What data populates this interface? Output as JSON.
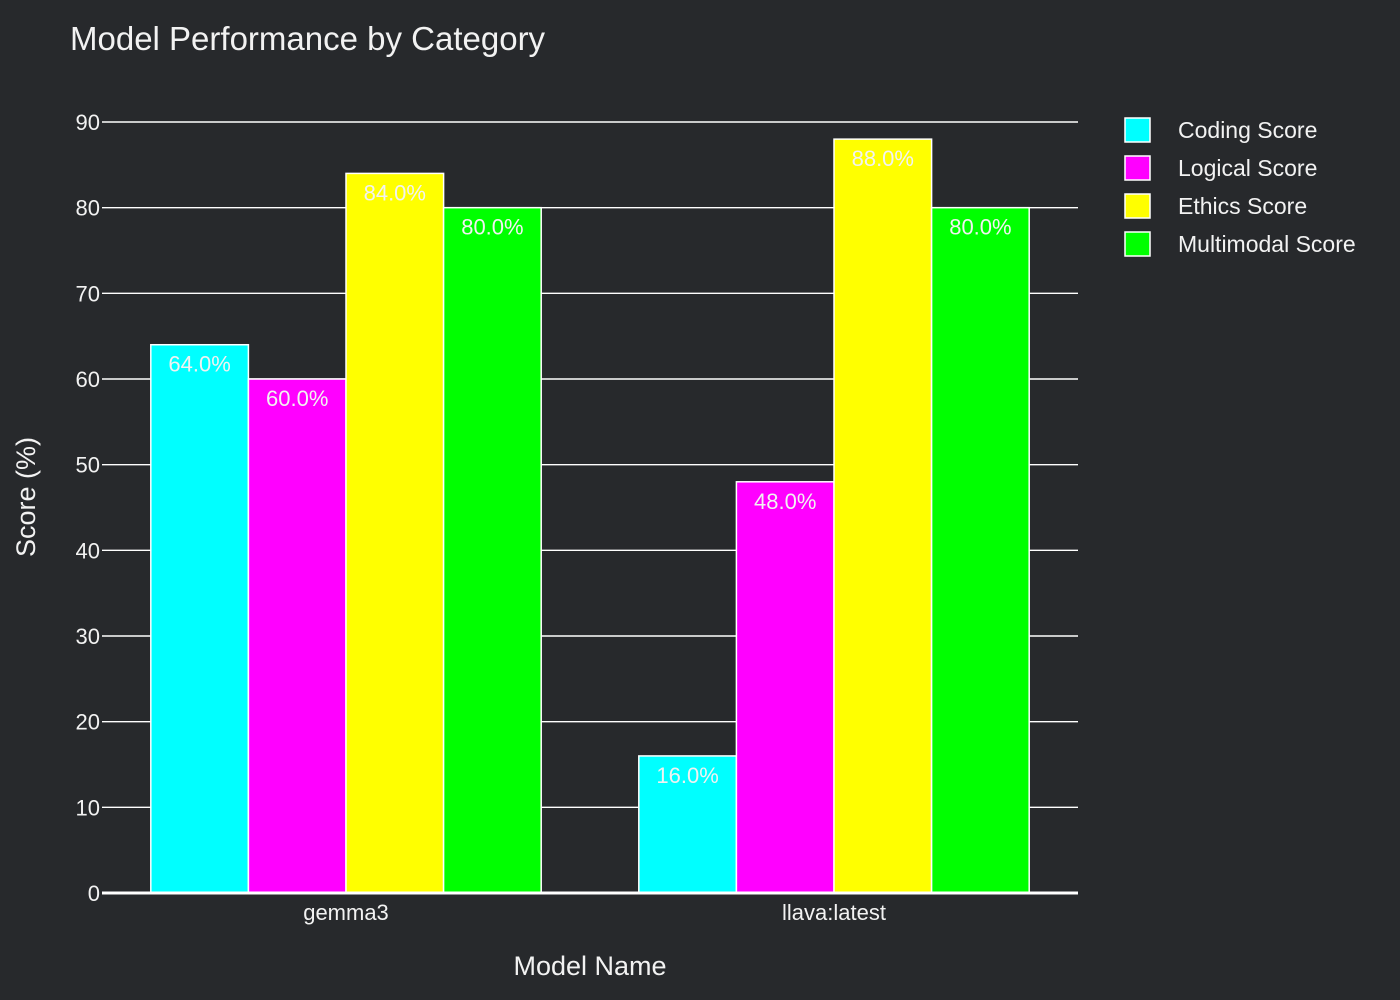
{
  "chart_data": {
    "type": "bar",
    "title": "Model Performance by Category",
    "xlabel": "Model Name",
    "ylabel": "Score (%)",
    "categories": [
      "gemma3",
      "llava:latest"
    ],
    "series": [
      {
        "name": "Coding Score",
        "color": "#00ffff",
        "values": [
          64,
          16
        ],
        "labels": [
          "64.0%",
          "16.0%"
        ]
      },
      {
        "name": "Logical Score",
        "color": "#ff00ff",
        "values": [
          60,
          48
        ],
        "labels": [
          "60.0%",
          "48.0%"
        ]
      },
      {
        "name": "Ethics Score",
        "color": "#ffff00",
        "values": [
          84,
          88
        ],
        "labels": [
          "84.0%",
          "88.0%"
        ]
      },
      {
        "name": "Multimodal Score",
        "color": "#00ff00",
        "values": [
          80,
          80
        ],
        "labels": [
          "80.0%",
          "80.0%"
        ]
      }
    ],
    "ylim": [
      0,
      90
    ],
    "yticks": [
      0,
      10,
      20,
      30,
      40,
      50,
      60,
      70,
      80,
      90
    ],
    "grid": true,
    "legend_position": "top-right",
    "colors": {
      "background": "#27292c",
      "text": "#f2f2f2",
      "grid": "#ffffff",
      "bar_outline": "#ffffff"
    }
  }
}
